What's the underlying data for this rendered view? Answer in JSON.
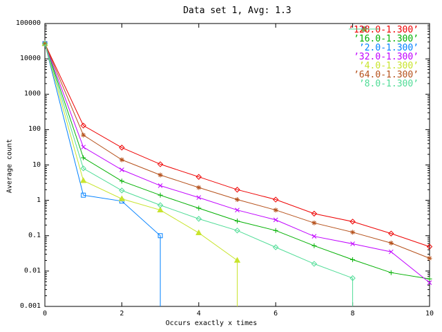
{
  "title": "Data set 1, Avg: 1.3",
  "x_axis": {
    "label": "Occurs exactly x times",
    "min": 0,
    "max": 10,
    "ticks": [
      0,
      2,
      4,
      6,
      8,
      10
    ]
  },
  "y_axis": {
    "label": "Average count",
    "scale": "log",
    "min": 0.001,
    "max": 100000,
    "ticks": [
      "100000",
      "10000",
      "1000",
      "100",
      "10",
      "1",
      "0.1",
      "0.01",
      "0.001"
    ]
  },
  "chart_data": {
    "type": "line",
    "x": [
      0,
      1,
      2,
      3,
      4,
      5,
      6,
      7,
      8,
      9,
      10
    ],
    "title": "Data set 1, Avg: 1.3",
    "xlabel": "Occurs exactly x times",
    "ylabel": "Average count",
    "xlim": [
      0,
      10
    ],
    "ylim": [
      0.001,
      100000
    ],
    "grid": false,
    "legend_position": "top-right-inside",
    "series": [
      {
        "name": "’128.0-1.300’",
        "color": "#ee0000",
        "marker": "diamond-open",
        "values": [
          27000,
          130,
          31,
          10.5,
          4.6,
          2.0,
          1.05,
          0.42,
          0.25,
          0.115,
          0.049
        ],
        "drop_to_zero_after_last": false
      },
      {
        "name": "’16.0-1.300’",
        "color": "#00b000",
        "marker": "plus",
        "values": [
          27000,
          16,
          3.5,
          1.4,
          0.6,
          0.26,
          0.14,
          0.052,
          0.021,
          0.009,
          0.006
        ],
        "drop_to_zero_after_last": false
      },
      {
        "name": "’2.0-1.300’",
        "color": "#0080ff",
        "marker": "square-open",
        "values": [
          27000,
          1.4,
          0.95,
          0.1
        ],
        "drop_to_zero_after_last": true
      },
      {
        "name": "’32.0-1.300’",
        "color": "#c000ff",
        "marker": "cross",
        "values": [
          27000,
          32,
          7.3,
          2.6,
          1.2,
          0.53,
          0.28,
          0.096,
          0.059,
          0.035,
          0.0047
        ],
        "drop_to_zero_after_last": false
      },
      {
        "name": "’4.0-1.300’",
        "color": "#c8e42c",
        "marker": "triangle-filled",
        "values": [
          27000,
          3.6,
          1.1,
          0.53,
          0.12,
          0.02
        ],
        "drop_to_zero_after_last": true
      },
      {
        "name": "’64.0-1.300’",
        "color": "#b5501a",
        "marker": "asterisk",
        "values": [
          27000,
          70,
          14,
          5.2,
          2.3,
          1.05,
          0.53,
          0.23,
          0.125,
          0.062,
          0.023
        ],
        "drop_to_zero_after_last": false
      },
      {
        "name": "’8.0-1.300’",
        "color": "#4fdc96",
        "marker": "diamond-open",
        "values": [
          27000,
          8.0,
          1.9,
          0.73,
          0.3,
          0.14,
          0.047,
          0.016,
          0.0063
        ],
        "drop_to_zero_after_last": true
      }
    ]
  }
}
